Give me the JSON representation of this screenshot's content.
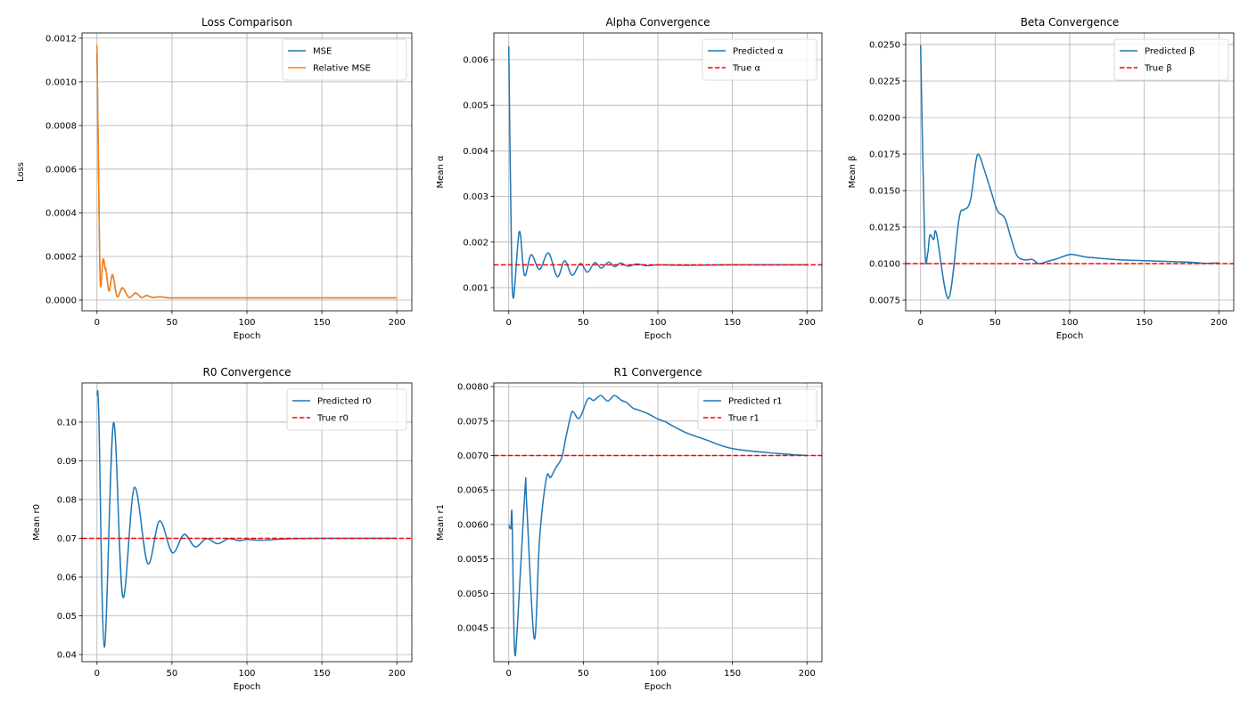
{
  "chart_data": [
    {
      "type": "line",
      "title": "Loss Comparison",
      "xlabel": "Epoch",
      "ylabel": "Loss",
      "xlim": [
        -10,
        210
      ],
      "ylim": [
        -4.9e-05,
        0.001224
      ],
      "grid": true,
      "legend": "upper-right",
      "xticks": [
        0,
        50,
        100,
        150,
        200
      ],
      "xtick_labels": [
        "0",
        "50",
        "100",
        "150",
        "200"
      ],
      "yticks": [
        0,
        0.0002,
        0.0004,
        0.0006,
        0.0008,
        0.001,
        0.0012
      ],
      "ytick_labels": [
        "0.0000",
        "0.0002",
        "0.0004",
        "0.0006",
        "0.0008",
        "0.0010",
        "0.0012"
      ],
      "series": [
        {
          "name": "MSE",
          "color": "#1f77b4",
          "style": "solid",
          "points": [
            [
              0,
              0.00113
            ],
            [
              1,
              0.0006
            ],
            [
              2.2,
              7.8e-05
            ],
            [
              4,
              0.000185
            ],
            [
              5.5,
              0.000142
            ],
            [
              6,
              0.00014
            ],
            [
              8,
              4.2e-05
            ],
            [
              10.4,
              0.000115
            ],
            [
              13.4,
              1.6e-05
            ],
            [
              17,
              5.5e-05
            ],
            [
              21.4,
              1.2e-05
            ],
            [
              25.7,
              3.2e-05
            ],
            [
              29.9,
              1.1e-05
            ],
            [
              33,
              2.1e-05
            ],
            [
              37,
              1.2e-05
            ],
            [
              42,
              1.5e-05
            ],
            [
              48,
              1e-05
            ],
            [
              55,
              1e-05
            ],
            [
              100,
              1e-05
            ],
            [
              150,
              1e-05
            ],
            [
              200,
              1e-05
            ]
          ]
        },
        {
          "name": "Relative MSE",
          "color": "#ff7f0e",
          "style": "solid",
          "points": [
            [
              0,
              0.00117
            ],
            [
              1,
              0.0006
            ],
            [
              2.2,
              7.8e-05
            ],
            [
              4,
              0.000188
            ],
            [
              5.5,
              0.000144
            ],
            [
              6,
              0.00014
            ],
            [
              8,
              4.2e-05
            ],
            [
              10.4,
              0.000118
            ],
            [
              13.4,
              1.6e-05
            ],
            [
              17,
              5.7e-05
            ],
            [
              21.4,
              1.2e-05
            ],
            [
              25.7,
              3.3e-05
            ],
            [
              29.9,
              1.1e-05
            ],
            [
              33,
              2.2e-05
            ],
            [
              37,
              1.2e-05
            ],
            [
              42,
              1.5e-05
            ],
            [
              48,
              1e-05
            ],
            [
              55,
              1e-05
            ],
            [
              100,
              1e-05
            ],
            [
              150,
              1e-05
            ],
            [
              200,
              1e-05
            ]
          ]
        }
      ]
    },
    {
      "type": "line",
      "title": "Alpha Convergence",
      "xlabel": "Epoch",
      "ylabel": "Mean α",
      "xlim": [
        -10,
        210
      ],
      "ylim": [
        0.000492,
        0.006586
      ],
      "grid": true,
      "legend": "upper-right",
      "xticks": [
        0,
        50,
        100,
        150,
        200
      ],
      "xtick_labels": [
        "0",
        "50",
        "100",
        "150",
        "200"
      ],
      "yticks": [
        0.001,
        0.002,
        0.003,
        0.004,
        0.005,
        0.006
      ],
      "ytick_labels": [
        "0.001",
        "0.002",
        "0.003",
        "0.004",
        "0.005",
        "0.006"
      ],
      "series": [
        {
          "name": "Predicted α",
          "color": "#1f77b4",
          "style": "solid",
          "points": [
            [
              0,
              0.00629
            ],
            [
              1.5,
              0.0025
            ],
            [
              3,
              0.00077
            ],
            [
              7.1,
              0.00223
            ],
            [
              10.5,
              0.00127
            ],
            [
              15,
              0.00172
            ],
            [
              20.6,
              0.0014
            ],
            [
              26.6,
              0.00176
            ],
            [
              32.6,
              0.00124
            ],
            [
              37.5,
              0.00159
            ],
            [
              42.5,
              0.00127
            ],
            [
              48,
              0.00153
            ],
            [
              52.8,
              0.00134
            ],
            [
              57.7,
              0.00155
            ],
            [
              62,
              0.00143
            ],
            [
              67,
              0.00156
            ],
            [
              71,
              0.00146
            ],
            [
              75,
              0.00154
            ],
            [
              80,
              0.00147
            ],
            [
              86,
              0.00152
            ],
            [
              92,
              0.00148
            ],
            [
              100,
              0.0015
            ],
            [
              120,
              0.00149
            ],
            [
              150,
              0.0015
            ],
            [
              200,
              0.0015
            ]
          ]
        },
        {
          "name": "True α",
          "color": "#ff0000",
          "style": "dashed",
          "points": [
            [
              -10,
              0.0015
            ],
            [
              210,
              0.0015
            ]
          ]
        }
      ]
    },
    {
      "type": "line",
      "title": "Beta Convergence",
      "xlabel": "Epoch",
      "ylabel": "Mean β",
      "xlim": [
        -10,
        210
      ],
      "ylim": [
        0.00677,
        0.02579
      ],
      "grid": true,
      "legend": "upper-right",
      "xticks": [
        0,
        50,
        100,
        150,
        200
      ],
      "xtick_labels": [
        "0",
        "50",
        "100",
        "150",
        "200"
      ],
      "yticks": [
        0.0075,
        0.01,
        0.0125,
        0.015,
        0.0175,
        0.02,
        0.0225,
        0.025
      ],
      "ytick_labels": [
        "0.0075",
        "0.0100",
        "0.0125",
        "0.0150",
        "0.0175",
        "0.0200",
        "0.0225",
        "0.0250"
      ],
      "series": [
        {
          "name": "Predicted β",
          "color": "#1f77b4",
          "style": "solid",
          "points": [
            [
              0,
              0.02496
            ],
            [
              2.8,
              0.01122
            ],
            [
              4.8,
              0.01073
            ],
            [
              6.2,
              0.01195
            ],
            [
              8.8,
              0.01163
            ],
            [
              10.7,
              0.01203
            ],
            [
              18.7,
              0.00762
            ],
            [
              25.7,
              0.01301
            ],
            [
              28.7,
              0.01366
            ],
            [
              31.6,
              0.01386
            ],
            [
              34,
              0.01463
            ],
            [
              37.2,
              0.01707
            ],
            [
              39.2,
              0.01744
            ],
            [
              42.6,
              0.01646
            ],
            [
              47.6,
              0.01484
            ],
            [
              51.5,
              0.01362
            ],
            [
              56.5,
              0.01311
            ],
            [
              60.5,
              0.01179
            ],
            [
              64.5,
              0.01057
            ],
            [
              69.4,
              0.01026
            ],
            [
              75,
              0.01028
            ],
            [
              79.4,
              0.01
            ],
            [
              85.4,
              0.01016
            ],
            [
              91.3,
              0.01033
            ],
            [
              99.3,
              0.01061
            ],
            [
              103,
              0.01061
            ],
            [
              111,
              0.01045
            ],
            [
              120,
              0.01037
            ],
            [
              135,
              0.01025
            ],
            [
              150,
              0.0102
            ],
            [
              180,
              0.0101
            ],
            [
              190,
              0.01002
            ],
            [
              200,
              0.01005
            ]
          ]
        },
        {
          "name": "True β",
          "color": "#ff0000",
          "style": "dashed",
          "points": [
            [
              -10,
              0.01
            ],
            [
              210,
              0.01
            ]
          ]
        }
      ]
    },
    {
      "type": "line",
      "title": "R0 Convergence",
      "xlabel": "Epoch",
      "ylabel": "Mean r0",
      "xlim": [
        -10,
        210
      ],
      "ylim": [
        0.03816,
        0.1101
      ],
      "grid": true,
      "legend": "upper-right",
      "xticks": [
        0,
        50,
        100,
        150,
        200
      ],
      "xtick_labels": [
        "0",
        "50",
        "100",
        "150",
        "200"
      ],
      "yticks": [
        0.04,
        0.05,
        0.06,
        0.07,
        0.08,
        0.09,
        0.1
      ],
      "ytick_labels": [
        "0.04",
        "0.05",
        "0.06",
        "0.07",
        "0.08",
        "0.09",
        "0.10"
      ],
      "series": [
        {
          "name": "Predicted r0",
          "color": "#1f77b4",
          "style": "solid",
          "points": [
            [
              0,
              0.1071
            ],
            [
              1.2,
              0.1017
            ],
            [
              4.9,
              0.0419
            ],
            [
              11,
              0.0998
            ],
            [
              17.2,
              0.0549
            ],
            [
              24.9,
              0.0831
            ],
            [
              33.8,
              0.0635
            ],
            [
              41.7,
              0.0745
            ],
            [
              50.2,
              0.0663
            ],
            [
              58.1,
              0.071
            ],
            [
              65.5,
              0.0678
            ],
            [
              73,
              0.0699
            ],
            [
              80.5,
              0.0686
            ],
            [
              87.8,
              0.0699
            ],
            [
              94.7,
              0.0694
            ],
            [
              100,
              0.0697
            ],
            [
              110,
              0.0695
            ],
            [
              130,
              0.0699
            ],
            [
              160,
              0.07
            ],
            [
              200,
              0.07
            ]
          ]
        },
        {
          "name": "True r0",
          "color": "#ff0000",
          "style": "dashed",
          "points": [
            [
              -10,
              0.07
            ],
            [
              210,
              0.07
            ]
          ]
        }
      ]
    },
    {
      "type": "line",
      "title": "R1 Convergence",
      "xlabel": "Epoch",
      "ylabel": "Mean r1",
      "xlim": [
        -10,
        210
      ],
      "ylim": [
        0.004009,
        0.008053
      ],
      "grid": true,
      "legend": "upper-right",
      "xticks": [
        0,
        50,
        100,
        150,
        200
      ],
      "xtick_labels": [
        "0",
        "50",
        "100",
        "150",
        "200"
      ],
      "yticks": [
        0.0045,
        0.005,
        0.0055,
        0.006,
        0.0065,
        0.007,
        0.0075,
        0.008
      ],
      "ytick_labels": [
        "0.0045",
        "0.0050",
        "0.0055",
        "0.0060",
        "0.0065",
        "0.0070",
        "0.0075",
        "0.0080"
      ],
      "series": [
        {
          "name": "Predicted r1",
          "color": "#1f77b4",
          "style": "solid",
          "points": [
            [
              0,
              0.00599
            ],
            [
              1.4,
              0.00594
            ],
            [
              2.2,
              0.00611
            ],
            [
              3.8,
              0.00422
            ],
            [
              5.8,
              0.00452
            ],
            [
              10.9,
              0.00652
            ],
            [
              12,
              0.0063
            ],
            [
              17.1,
              0.00434
            ],
            [
              20.6,
              0.00577
            ],
            [
              25.2,
              0.00667
            ],
            [
              28,
              0.00668
            ],
            [
              31.5,
              0.00682
            ],
            [
              35.5,
              0.00697
            ],
            [
              38.5,
              0.00728
            ],
            [
              41.8,
              0.0076
            ],
            [
              43.4,
              0.00763
            ],
            [
              47.4,
              0.00754
            ],
            [
              53,
              0.00782
            ],
            [
              56.9,
              0.0078
            ],
            [
              61.7,
              0.00787
            ],
            [
              66.3,
              0.00779
            ],
            [
              70.8,
              0.00787
            ],
            [
              75.6,
              0.0078
            ],
            [
              79,
              0.00777
            ],
            [
              83.2,
              0.00769
            ],
            [
              87,
              0.00766
            ],
            [
              93,
              0.00761
            ],
            [
              100,
              0.00753
            ],
            [
              105,
              0.00749
            ],
            [
              109,
              0.00744
            ],
            [
              119,
              0.00733
            ],
            [
              132,
              0.00723
            ],
            [
              150,
              0.0071
            ],
            [
              180,
              0.00703
            ],
            [
              200,
              0.007
            ]
          ]
        },
        {
          "name": "True r1",
          "color": "#ff0000",
          "style": "dashed",
          "points": [
            [
              -10,
              0.007
            ],
            [
              210,
              0.007
            ]
          ]
        }
      ]
    }
  ]
}
